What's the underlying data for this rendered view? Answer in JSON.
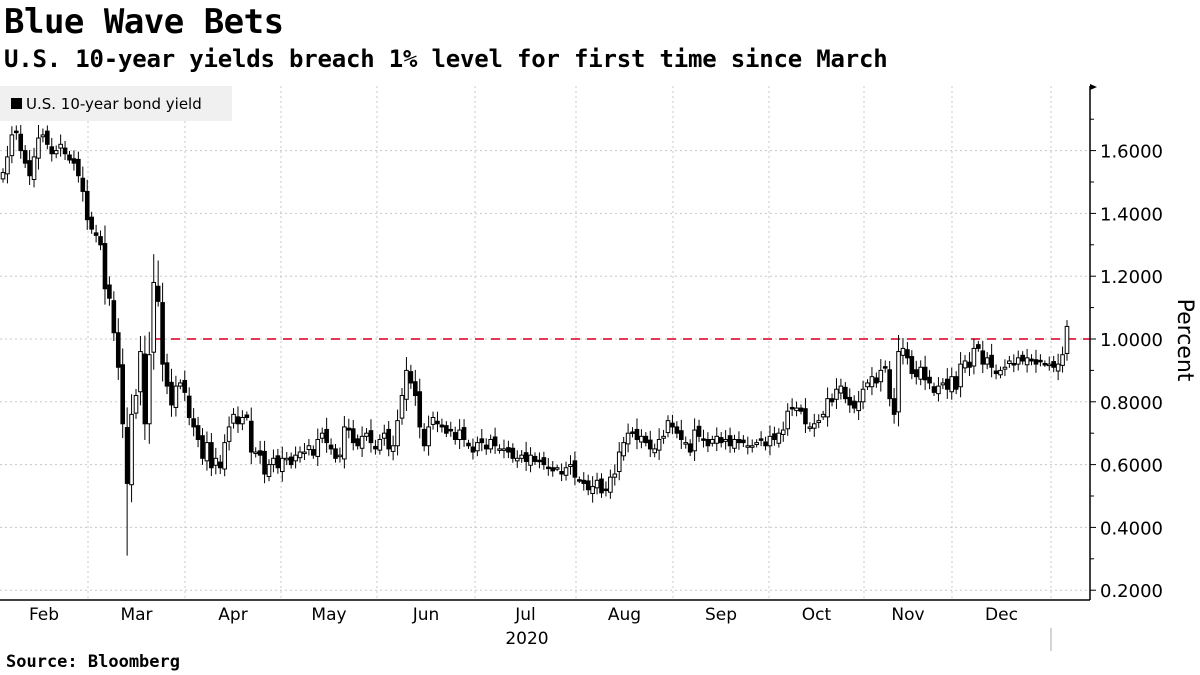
{
  "header": {
    "title": "Blue Wave Bets",
    "subtitle": "U.S. 10-year yields breach 1% level for first time since March"
  },
  "footer": {
    "source": "Source: Bloomberg"
  },
  "chart_data": {
    "type": "candlestick",
    "title": "Blue Wave Bets",
    "subtitle": "U.S. 10-year yields breach 1% level for first time since March",
    "ylabel": "Percent",
    "xlabel": "2020",
    "ylim": [
      0.2,
      1.8
    ],
    "yticks": [
      "1.6000",
      "1.4000",
      "1.2000",
      "1.0000",
      "0.8000",
      "0.6000",
      "0.4000",
      "0.2000"
    ],
    "ytick_values": [
      1.6,
      1.4,
      1.2,
      1.0,
      0.8,
      0.6,
      0.4,
      0.2
    ],
    "xticks": [
      "Feb",
      "Mar",
      "Apr",
      "May",
      "Jun",
      "Jul",
      "Aug",
      "Sep",
      "Oct",
      "Nov",
      "Dec"
    ],
    "legend": {
      "label": "U.S. 10-year bond yield",
      "placement": "top-left"
    },
    "reference_line": {
      "value": 1.0,
      "color": "#e8385a",
      "style": "dashed"
    },
    "grid": true,
    "colors": {
      "up": "#ffffff",
      "down": "#000000",
      "outline": "#000000"
    },
    "series": [
      {
        "name": "U.S. 10-year bond yield",
        "period": "late Jan 2020 - early Jan 2021, daily",
        "close": [
          1.53,
          1.58,
          1.65,
          1.66,
          1.6,
          1.56,
          1.52,
          1.58,
          1.64,
          1.65,
          1.62,
          1.59,
          1.6,
          1.62,
          1.59,
          1.57,
          1.56,
          1.52,
          1.47,
          1.38,
          1.35,
          1.33,
          1.3,
          1.16,
          1.13,
          1.02,
          0.91,
          0.73,
          0.54,
          0.76,
          0.82,
          0.96,
          0.73,
          0.95,
          1.18,
          1.12,
          0.92,
          0.85,
          0.79,
          0.85,
          0.86,
          0.83,
          0.75,
          0.72,
          0.68,
          0.62,
          0.67,
          0.59,
          0.62,
          0.59,
          0.67,
          0.72,
          0.76,
          0.73,
          0.75,
          0.75,
          0.64,
          0.64,
          0.63,
          0.57,
          0.6,
          0.62,
          0.59,
          0.62,
          0.62,
          0.6,
          0.63,
          0.64,
          0.64,
          0.66,
          0.63,
          0.68,
          0.7,
          0.67,
          0.65,
          0.62,
          0.63,
          0.72,
          0.71,
          0.67,
          0.66,
          0.69,
          0.7,
          0.67,
          0.65,
          0.68,
          0.7,
          0.65,
          0.66,
          0.74,
          0.82,
          0.9,
          0.86,
          0.82,
          0.72,
          0.66,
          0.72,
          0.75,
          0.73,
          0.72,
          0.7,
          0.71,
          0.68,
          0.71,
          0.68,
          0.66,
          0.64,
          0.67,
          0.67,
          0.65,
          0.68,
          0.66,
          0.65,
          0.65,
          0.64,
          0.62,
          0.62,
          0.63,
          0.61,
          0.63,
          0.61,
          0.61,
          0.6,
          0.59,
          0.58,
          0.59,
          0.57,
          0.59,
          0.6,
          0.56,
          0.55,
          0.54,
          0.52,
          0.53,
          0.55,
          0.51,
          0.52,
          0.56,
          0.57,
          0.64,
          0.67,
          0.7,
          0.7,
          0.68,
          0.69,
          0.67,
          0.65,
          0.65,
          0.68,
          0.69,
          0.74,
          0.72,
          0.7,
          0.68,
          0.67,
          0.64,
          0.71,
          0.69,
          0.68,
          0.66,
          0.68,
          0.69,
          0.67,
          0.68,
          0.66,
          0.68,
          0.67,
          0.67,
          0.66,
          0.66,
          0.67,
          0.68,
          0.66,
          0.69,
          0.68,
          0.7,
          0.71,
          0.77,
          0.78,
          0.78,
          0.77,
          0.73,
          0.72,
          0.73,
          0.74,
          0.76,
          0.81,
          0.8,
          0.84,
          0.85,
          0.81,
          0.79,
          0.78,
          0.8,
          0.84,
          0.86,
          0.88,
          0.86,
          0.9,
          0.91,
          0.81,
          0.76,
          0.96,
          0.97,
          0.94,
          0.89,
          0.88,
          0.91,
          0.87,
          0.86,
          0.83,
          0.85,
          0.86,
          0.84,
          0.88,
          0.84,
          0.92,
          0.93,
          0.91,
          0.97,
          0.97,
          0.92,
          0.94,
          0.91,
          0.89,
          0.9,
          0.91,
          0.93,
          0.92,
          0.94,
          0.93,
          0.94,
          0.93,
          0.92,
          0.93,
          0.92,
          0.92,
          0.91,
          0.92,
          0.95,
          1.04
        ],
        "extremes": [
          {
            "index": 28,
            "low": 0.31
          },
          {
            "index": 34,
            "high": 1.27
          },
          {
            "index": 35,
            "high": 1.25
          },
          {
            "index": 3,
            "high": 1.68
          },
          {
            "index": 240,
            "high": 1.06
          }
        ]
      }
    ]
  }
}
